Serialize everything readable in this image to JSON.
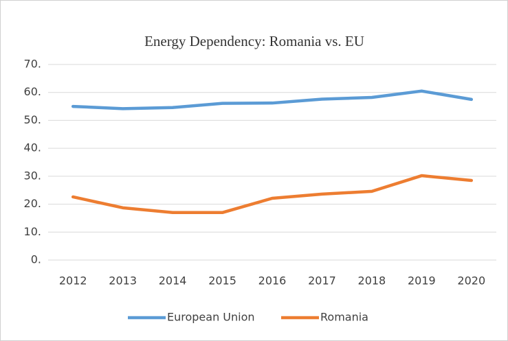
{
  "chart_data": {
    "type": "line",
    "title": "Energy Dependency: Romania vs. EU",
    "categories": [
      "2012",
      "2013",
      "2014",
      "2015",
      "2016",
      "2017",
      "2018",
      "2019",
      "2020"
    ],
    "series": [
      {
        "name": "European Union",
        "color": "#5b9bd5",
        "values": [
          55.0,
          54.2,
          54.6,
          56.1,
          56.2,
          57.6,
          58.2,
          60.5,
          57.5
        ]
      },
      {
        "name": "Romania",
        "color": "#ed7d31",
        "values": [
          22.6,
          18.7,
          17.0,
          17.0,
          22.1,
          23.6,
          24.6,
          30.2,
          28.5
        ]
      }
    ],
    "ylim": [
      0,
      70
    ],
    "yticks": [
      {
        "value": 0,
        "label": "0."
      },
      {
        "value": 10,
        "label": "10."
      },
      {
        "value": 20,
        "label": "20."
      },
      {
        "value": 30,
        "label": "30."
      },
      {
        "value": 40,
        "label": "40."
      },
      {
        "value": 50,
        "label": "50."
      },
      {
        "value": 60,
        "label": "60."
      },
      {
        "value": 70,
        "label": "70."
      }
    ],
    "grid": true,
    "legend": "bottom"
  }
}
